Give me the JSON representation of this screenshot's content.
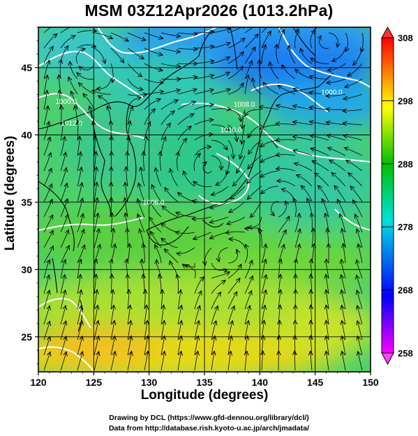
{
  "title": "MSM 03Z12Apr2026 (1013.2hPa)",
  "map": {
    "xlabel": "Longitude (degrees)",
    "ylabel": "Latitude  (degrees)",
    "lon_range": [
      120,
      150
    ],
    "lat_range": [
      22.4,
      48
    ],
    "lon_ticks": [
      120,
      125,
      130,
      135,
      140,
      145,
      150
    ],
    "lat_ticks": [
      25,
      30,
      35,
      40,
      45
    ],
    "grid": true,
    "colorbar": {
      "ticks": [
        258,
        268,
        278,
        288,
        298,
        308
      ],
      "range": [
        258,
        308
      ],
      "colors": [
        "#ff00ff",
        "#0000ff",
        "#00ffff",
        "#00c000",
        "#ffff00",
        "#ff0000"
      ]
    },
    "isobar_labels": [
      {
        "text": "1000.0",
        "lon": 122.5,
        "lat": 42.3
      },
      {
        "text": "1012.0",
        "lon": 123.0,
        "lat": 40.7
      },
      {
        "text": "1008.0",
        "lon": 138.6,
        "lat": 42.1
      },
      {
        "text": "1010.0",
        "lon": 137.4,
        "lat": 40.2
      },
      {
        "text": "1000.0",
        "lon": 146.5,
        "lat": 43.0
      },
      {
        "text": "1006.0",
        "lon": 130.4,
        "lat": 34.8
      }
    ],
    "credit": [
      "Drawing by DCL (https://www.gfd-dennou.org/library/dcl/)",
      "Data from http://database.rish.kyoto-u.ac.jp/arch/jmadata/"
    ]
  }
}
